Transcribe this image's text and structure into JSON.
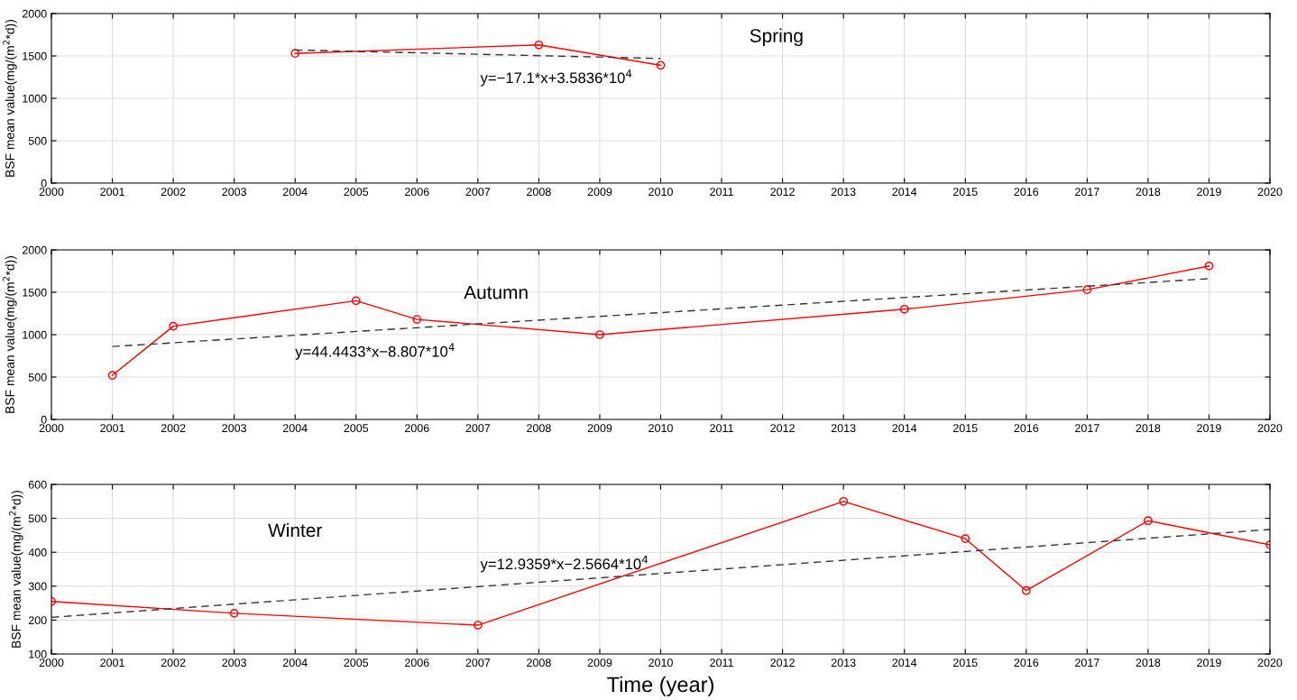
{
  "chart_data": [
    {
      "type": "line",
      "ylabel": "BSF mean value(mg/(m$^{2}$*d))",
      "xlim": [
        2000,
        2020
      ],
      "xticks": [
        2000,
        2001,
        2002,
        2003,
        2004,
        2005,
        2006,
        2007,
        2008,
        2009,
        2010,
        2011,
        2012,
        2013,
        2014,
        2015,
        2016,
        2017,
        2018,
        2019,
        2020
      ],
      "ylim": [
        0,
        2000
      ],
      "yticks": [
        0,
        500,
        1000,
        1500,
        2000
      ],
      "grid": true,
      "series": [
        {
          "color": "#ff0000",
          "x": [
            2004,
            2008,
            2010
          ],
          "values": [
            1530,
            1630,
            1390
          ],
          "marker": "circle",
          "line_style": "solid"
        },
        {
          "color": "#333333",
          "x": [
            2004,
            2010
          ],
          "values": [
            1570,
            1470
          ],
          "marker": "none",
          "line_style": "dashed"
        }
      ],
      "annotations": [
        "Spring",
        "y=−17.1*x+3.5836*10$^{4}$"
      ]
    },
    {
      "type": "line",
      "ylabel": "BSF mean value(mg/(m$^{2}$*d))",
      "xlim": [
        2000,
        2020
      ],
      "xticks": [
        2000,
        2001,
        2002,
        2003,
        2004,
        2005,
        2006,
        2007,
        2008,
        2009,
        2010,
        2011,
        2012,
        2013,
        2014,
        2015,
        2016,
        2017,
        2018,
        2019,
        2020
      ],
      "ylim": [
        0,
        2000
      ],
      "yticks": [
        0,
        500,
        1000,
        1500,
        2000
      ],
      "grid": true,
      "series": [
        {
          "color": "#ff0000",
          "x": [
            2001,
            2002,
            2005,
            2006,
            2009,
            2014,
            2017,
            2019
          ],
          "values": [
            520,
            1100,
            1400,
            1180,
            1000,
            1300,
            1530,
            1810
          ],
          "marker": "circle",
          "line_style": "solid"
        },
        {
          "color": "#333333",
          "x": [
            2001,
            2019
          ],
          "values": [
            860,
            1660
          ],
          "marker": "none",
          "line_style": "dashed"
        }
      ],
      "annotations": [
        "Autumn",
        "y=44.4433*x−8.807*10$^{4}$"
      ]
    },
    {
      "type": "line",
      "xlabel": "Time (year)",
      "ylabel": "BSF mean value(mg/(m$^{2}$*d))",
      "xlim": [
        2000,
        2020
      ],
      "xticks": [
        2000,
        2001,
        2002,
        2003,
        2004,
        2005,
        2006,
        2007,
        2008,
        2009,
        2010,
        2011,
        2012,
        2013,
        2014,
        2015,
        2016,
        2017,
        2018,
        2019,
        2020
      ],
      "ylim": [
        100,
        600
      ],
      "yticks": [
        100,
        200,
        300,
        400,
        500,
        600
      ],
      "grid": true,
      "series": [
        {
          "color": "#ff0000",
          "x": [
            2000,
            2003,
            2007,
            2013,
            2015,
            2016,
            2018,
            2020
          ],
          "values": [
            255,
            220,
            185,
            550,
            440,
            287,
            493,
            422
          ],
          "marker": "circle",
          "line_style": "solid"
        },
        {
          "color": "#333333",
          "x": [
            2000,
            2020
          ],
          "values": [
            208,
            467
          ],
          "marker": "none",
          "line_style": "dashed"
        }
      ],
      "annotations": [
        "Winter",
        "y=12.9359*x−2.5664*10$^{4}$"
      ]
    }
  ]
}
